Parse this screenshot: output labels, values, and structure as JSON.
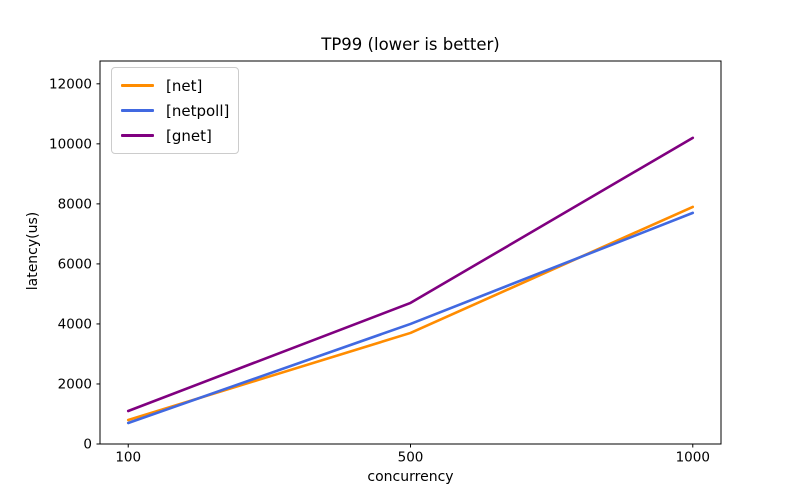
{
  "chart_data": {
    "type": "line",
    "title": "TP99 (lower is better)",
    "xlabel": "concurrency",
    "ylabel": "latency(us)",
    "x_axis_style": "categorical",
    "categories": [
      "100",
      "500",
      "1000"
    ],
    "series": [
      {
        "name": "[net]",
        "color": "#ff8c00",
        "values": [
          800,
          3700,
          7900
        ]
      },
      {
        "name": "[netpoll]",
        "color": "#4169e1",
        "values": [
          700,
          4000,
          7700
        ]
      },
      {
        "name": "[gnet]",
        "color": "#800080",
        "values": [
          1100,
          4700,
          10200
        ]
      }
    ],
    "y_ticks": [
      0,
      2000,
      4000,
      6000,
      8000,
      10000,
      12000
    ],
    "ylim": [
      0,
      12760
    ],
    "grid": false,
    "legend_position": "upper left",
    "axis_color": "#000000",
    "background_color": "#ffffff"
  }
}
